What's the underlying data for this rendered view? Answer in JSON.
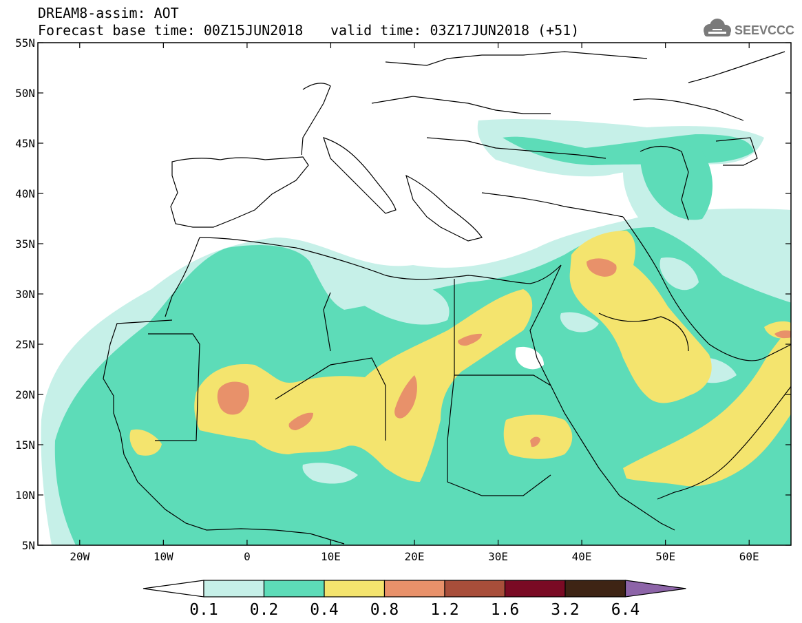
{
  "header": {
    "title": "DREAM8-assim: AOT",
    "base_time_label": "Forecast base time: 00Z15JUN2018",
    "valid_time_label": "valid time: 03Z17JUN2018 (+51)"
  },
  "logo": {
    "text": "SEEVCCC",
    "icon": "cloud-icon",
    "color": "#7a7a7a"
  },
  "map": {
    "projection": "equirectangular",
    "lon_range": [
      -25,
      65
    ],
    "lat_range": [
      5,
      55
    ],
    "lat_ticks": [
      "55N",
      "50N",
      "45N",
      "40N",
      "35N",
      "30N",
      "25N",
      "20N",
      "15N",
      "10N",
      "5N"
    ],
    "lon_ticks": [
      "20W",
      "10W",
      "0",
      "10E",
      "20E",
      "30E",
      "40E",
      "50E",
      "60E"
    ],
    "variable": "Aerosol optical thickness"
  },
  "colorbar": {
    "labels": [
      "0.1",
      "0.2",
      "0.4",
      "0.8",
      "1.2",
      "1.6",
      "3.2",
      "6.4"
    ],
    "colors": [
      "#ffffff",
      "#c6f0e8",
      "#5ddcb8",
      "#f4e46e",
      "#e8916a",
      "#a84e3a",
      "#7a0a24",
      "#3e2414",
      "#8d64a8"
    ]
  }
}
